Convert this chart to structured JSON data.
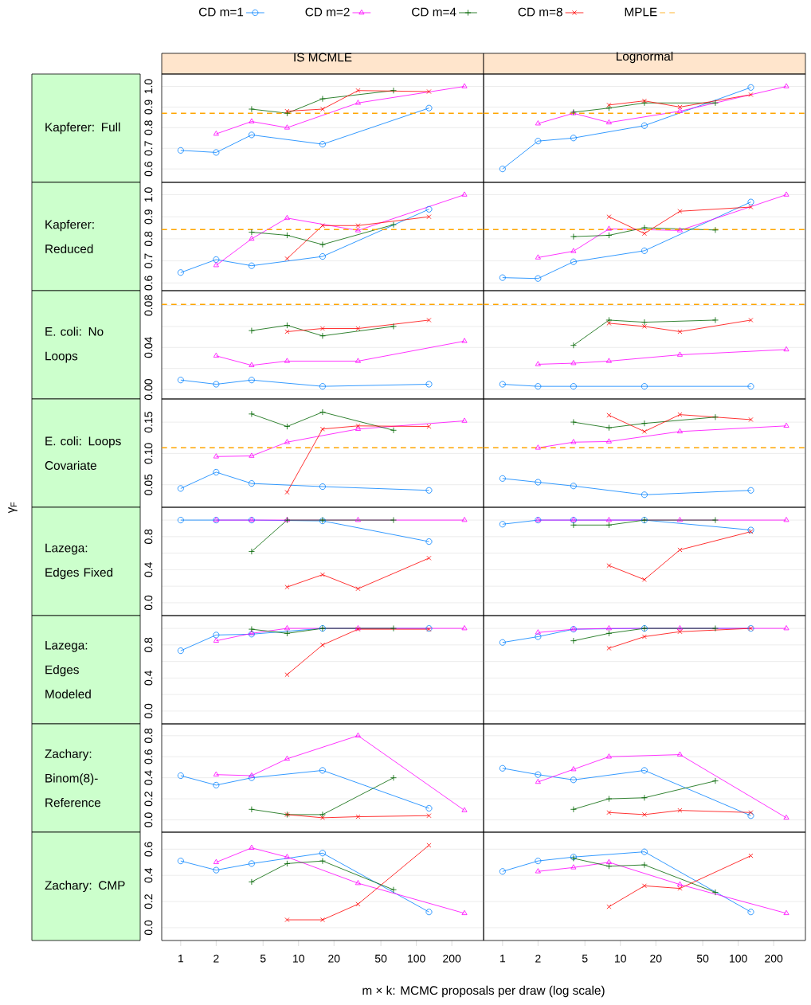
{
  "chart_data": [
    {
      "type": "line",
      "title": "IS MCMLE",
      "ylabel": "Kapferer: Full",
      "legend": "top",
      "log": "x",
      "grid": "y",
      "tick_labels": "y",
      "xlim": [
        0.69,
        372
      ],
      "xticks": [
        1,
        2,
        5,
        10,
        20,
        50,
        100,
        200
      ],
      "ylim": [
        0.535,
        1.06
      ],
      "yticks": [
        {
          "value": 0.6,
          "label": "0.6"
        },
        {
          "value": 0.7,
          "label": "0.7"
        },
        {
          "value": 0.8,
          "label": "0.8"
        },
        {
          "value": 0.9,
          "label": "0.9"
        },
        {
          "value": 1.0,
          "label": "1.0"
        }
      ],
      "series": [
        {
          "name": "CD m=1",
          "color": "#0080ff",
          "marker": "circle",
          "x": [
            1,
            2,
            4,
            16,
            128
          ],
          "values": [
            0.69,
            0.68,
            0.765,
            0.72,
            0.895
          ]
        },
        {
          "name": "CD m=2",
          "color": "#ff00ff",
          "marker": "triangle",
          "x": [
            2,
            4,
            8,
            32,
            256
          ],
          "values": [
            0.77,
            0.83,
            0.8,
            0.92,
            1.0
          ]
        },
        {
          "name": "CD m=4",
          "color": "#006400",
          "marker": "plus",
          "x": [
            4,
            8,
            16,
            64
          ],
          "values": [
            0.89,
            0.87,
            0.94,
            0.98
          ]
        },
        {
          "name": "CD m=8",
          "color": "#ff0000",
          "marker": "cross",
          "x": [
            8,
            16,
            32,
            128
          ],
          "values": [
            0.88,
            0.89,
            0.98,
            0.975
          ]
        }
      ],
      "ref_lines": [
        {
          "axis": "y",
          "value": 0.87,
          "label": "MPLE",
          "color": "#ffa500",
          "line_style": "dashed"
        }
      ]
    },
    {
      "type": "line",
      "title": "Lognormal",
      "log": "x",
      "grid": "y",
      "tick_labels": false,
      "xlim": [
        0.69,
        372
      ],
      "xticks": [
        1,
        2,
        5,
        10,
        20,
        50,
        100,
        200
      ],
      "ylim": [
        0.535,
        1.06
      ],
      "yticks": [
        {
          "value": 0.6,
          "label": null
        },
        {
          "value": 0.7,
          "label": null
        },
        {
          "value": 0.8,
          "label": null
        },
        {
          "value": 0.9,
          "label": null
        },
        {
          "value": 1.0,
          "label": null
        }
      ],
      "series": [
        {
          "color": "#0080ff",
          "marker": "circle",
          "x": [
            1,
            2,
            4,
            16,
            128
          ],
          "values": [
            0.6,
            0.735,
            0.75,
            0.81,
            0.995
          ]
        },
        {
          "color": "#ff00ff",
          "marker": "triangle",
          "x": [
            2,
            4,
            8,
            32,
            256
          ],
          "values": [
            0.82,
            0.87,
            0.825,
            0.88,
            1.0
          ]
        },
        {
          "color": "#006400",
          "marker": "plus",
          "x": [
            4,
            8,
            16,
            64
          ],
          "values": [
            0.875,
            0.895,
            0.92,
            0.92
          ]
        },
        {
          "color": "#ff0000",
          "marker": "cross",
          "x": [
            8,
            16,
            32,
            128
          ],
          "values": [
            0.91,
            0.93,
            0.9,
            0.96
          ]
        }
      ],
      "ref_lines": [
        {
          "axis": "y",
          "value": 0.87,
          "color": "#ffa500",
          "line_style": "dashed"
        }
      ]
    },
    {
      "type": "line",
      "ylabel": "Kapferer: Reduced",
      "log": "x",
      "grid": "y",
      "tick_labels": "y",
      "xlim": [
        0.69,
        372
      ],
      "xticks": [
        1,
        2,
        5,
        10,
        20,
        50,
        100,
        200
      ],
      "ylim": [
        0.565,
        1.056
      ],
      "yticks": [
        {
          "value": 0.6,
          "label": "0.6"
        },
        {
          "value": 0.7,
          "label": "0.7"
        },
        {
          "value": 0.8,
          "label": "0.8"
        },
        {
          "value": 0.9,
          "label": "0.9"
        },
        {
          "value": 1.0,
          "label": "1.0"
        }
      ],
      "series": [
        {
          "color": "#0080ff",
          "marker": "circle",
          "x": [
            1,
            2,
            4,
            16,
            128
          ],
          "values": [
            0.647,
            0.706,
            0.678,
            0.72,
            0.934
          ]
        },
        {
          "color": "#ff00ff",
          "marker": "triangle",
          "x": [
            2,
            4,
            8,
            32,
            256
          ],
          "values": [
            0.68,
            0.8,
            0.894,
            0.838,
            1.0
          ]
        },
        {
          "color": "#006400",
          "marker": "plus",
          "x": [
            4,
            8,
            16,
            64
          ],
          "values": [
            0.83,
            0.816,
            0.774,
            0.864
          ]
        },
        {
          "color": "#ff0000",
          "marker": "cross",
          "x": [
            8,
            16,
            32,
            128
          ],
          "values": [
            0.71,
            0.86,
            0.86,
            0.9
          ]
        }
      ],
      "ref_lines": [
        {
          "axis": "y",
          "value": 0.842,
          "color": "#ffa500",
          "line_style": "dashed"
        }
      ]
    },
    {
      "type": "line",
      "log": "x",
      "grid": "y",
      "tick_labels": false,
      "xlim": [
        0.69,
        372
      ],
      "xticks": [
        1,
        2,
        5,
        10,
        20,
        50,
        100,
        200
      ],
      "ylim": [
        0.565,
        1.056
      ],
      "yticks": [
        {
          "value": 0.6,
          "label": null
        },
        {
          "value": 0.7,
          "label": null
        },
        {
          "value": 0.8,
          "label": null
        },
        {
          "value": 0.9,
          "label": null
        },
        {
          "value": 1.0,
          "label": null
        }
      ],
      "series": [
        {
          "color": "#0080ff",
          "marker": "circle",
          "x": [
            1,
            2,
            4,
            16,
            128
          ],
          "values": [
            0.624,
            0.62,
            0.696,
            0.746,
            0.967
          ]
        },
        {
          "color": "#ff00ff",
          "marker": "triangle",
          "x": [
            2,
            4,
            8,
            32,
            256
          ],
          "values": [
            0.715,
            0.744,
            0.845,
            0.838,
            1.0
          ]
        },
        {
          "color": "#006400",
          "marker": "plus",
          "x": [
            4,
            8,
            16,
            64
          ],
          "values": [
            0.81,
            0.816,
            0.85,
            0.84
          ]
        },
        {
          "color": "#ff0000",
          "marker": "cross",
          "x": [
            8,
            16,
            32,
            128
          ],
          "values": [
            0.9,
            0.824,
            0.925,
            0.944
          ]
        }
      ],
      "ref_lines": [
        {
          "axis": "y",
          "value": 0.842,
          "color": "#ffa500",
          "line_style": "dashed"
        }
      ]
    },
    {
      "type": "line",
      "ylabel": "E. coli: No Loops",
      "log": "x",
      "grid": "y",
      "tick_labels": "y",
      "xlim": [
        0.69,
        372
      ],
      "xticks": [
        1,
        2,
        5,
        10,
        20,
        50,
        100,
        200
      ],
      "ylim": [
        -0.009,
        0.094
      ],
      "yticks": [
        {
          "value": 0.0,
          "label": "0.00"
        },
        {
          "value": 0.02,
          "label": null
        },
        {
          "value": 0.04,
          "label": "0.04"
        },
        {
          "value": 0.06,
          "label": null
        },
        {
          "value": 0.08,
          "label": "0.08"
        }
      ],
      "series": [
        {
          "color": "#0080ff",
          "marker": "circle",
          "x": [
            1,
            2,
            4,
            16,
            128
          ],
          "values": [
            0.009,
            0.005,
            0.009,
            0.003,
            0.005
          ]
        },
        {
          "color": "#ff00ff",
          "marker": "triangle",
          "x": [
            2,
            4,
            8,
            32,
            256
          ],
          "values": [
            0.032,
            0.023,
            0.027,
            0.027,
            0.046
          ]
        },
        {
          "color": "#006400",
          "marker": "plus",
          "x": [
            4,
            8,
            16,
            64
          ],
          "values": [
            0.056,
            0.061,
            0.051,
            0.06
          ]
        },
        {
          "color": "#ff0000",
          "marker": "cross",
          "x": [
            8,
            16,
            32,
            128
          ],
          "values": [
            0.055,
            0.058,
            0.058,
            0.066
          ]
        }
      ],
      "ref_lines": [
        {
          "axis": "y",
          "value": 0.081,
          "color": "#ffa500",
          "line_style": "dashed"
        }
      ]
    },
    {
      "type": "line",
      "log": "x",
      "grid": "y",
      "tick_labels": false,
      "xlim": [
        0.69,
        372
      ],
      "xticks": [
        1,
        2,
        5,
        10,
        20,
        50,
        100,
        200
      ],
      "ylim": [
        -0.009,
        0.094
      ],
      "yticks": [
        {
          "value": 0.0,
          "label": null
        },
        {
          "value": 0.02,
          "label": null
        },
        {
          "value": 0.04,
          "label": null
        },
        {
          "value": 0.06,
          "label": null
        },
        {
          "value": 0.08,
          "label": null
        }
      ],
      "series": [
        {
          "color": "#0080ff",
          "marker": "circle",
          "x": [
            1,
            2,
            4,
            16,
            128
          ],
          "values": [
            0.005,
            0.003,
            0.003,
            0.003,
            0.003
          ]
        },
        {
          "color": "#ff00ff",
          "marker": "triangle",
          "x": [
            2,
            4,
            8,
            32,
            256
          ],
          "values": [
            0.024,
            0.025,
            0.027,
            0.033,
            0.038
          ]
        },
        {
          "color": "#006400",
          "marker": "plus",
          "x": [
            4,
            8,
            16,
            64
          ],
          "values": [
            0.042,
            0.066,
            0.064,
            0.066
          ]
        },
        {
          "color": "#ff0000",
          "marker": "cross",
          "x": [
            8,
            16,
            32,
            128
          ],
          "values": [
            0.063,
            0.06,
            0.055,
            0.066
          ]
        }
      ],
      "ref_lines": [
        {
          "axis": "y",
          "value": 0.081,
          "color": "#ffa500",
          "line_style": "dashed"
        }
      ]
    },
    {
      "type": "line",
      "ylabel": "E. coli: Loops Covariate",
      "annotations": [
        "γ$_{F}$"
      ],
      "log": "x",
      "grid": "y",
      "tick_labels": "y",
      "xlim": [
        0.69,
        372
      ],
      "xticks": [
        1,
        2,
        5,
        10,
        20,
        50,
        100,
        200
      ],
      "ylim": [
        0.014,
        0.187
      ],
      "yticks": [
        {
          "value": 0.05,
          "label": "0.05"
        },
        {
          "value": 0.1,
          "label": "0.10"
        },
        {
          "value": 0.15,
          "label": "0.15"
        }
      ],
      "series": [
        {
          "color": "#0080ff",
          "marker": "circle",
          "x": [
            1,
            2,
            4,
            16,
            128
          ],
          "values": [
            0.044,
            0.07,
            0.052,
            0.047,
            0.041
          ]
        },
        {
          "color": "#ff00ff",
          "marker": "triangle",
          "x": [
            2,
            4,
            8,
            32,
            256
          ],
          "values": [
            0.095,
            0.096,
            0.118,
            0.139,
            0.152
          ]
        },
        {
          "color": "#006400",
          "marker": "plus",
          "x": [
            4,
            8,
            16,
            64
          ],
          "values": [
            0.163,
            0.143,
            0.166,
            0.137
          ]
        },
        {
          "color": "#ff0000",
          "marker": "cross",
          "x": [
            8,
            16,
            32,
            128
          ],
          "values": [
            0.038,
            0.139,
            0.144,
            0.143
          ]
        }
      ],
      "ref_lines": [
        {
          "axis": "y",
          "value": 0.109,
          "color": "#ffa500",
          "line_style": "dashed"
        }
      ]
    },
    {
      "type": "line",
      "log": "x",
      "grid": "y",
      "tick_labels": false,
      "xlim": [
        0.69,
        372
      ],
      "xticks": [
        1,
        2,
        5,
        10,
        20,
        50,
        100,
        200
      ],
      "ylim": [
        0.014,
        0.187
      ],
      "yticks": [
        {
          "value": 0.05,
          "label": null
        },
        {
          "value": 0.1,
          "label": null
        },
        {
          "value": 0.15,
          "label": null
        }
      ],
      "series": [
        {
          "color": "#0080ff",
          "marker": "circle",
          "x": [
            1,
            2,
            4,
            16,
            128
          ],
          "values": [
            0.06,
            0.054,
            0.048,
            0.034,
            0.041
          ]
        },
        {
          "color": "#ff00ff",
          "marker": "triangle",
          "x": [
            2,
            4,
            8,
            32,
            256
          ],
          "values": [
            0.109,
            0.118,
            0.119,
            0.135,
            0.144
          ]
        },
        {
          "color": "#006400",
          "marker": "plus",
          "x": [
            4,
            8,
            16,
            64
          ],
          "values": [
            0.15,
            0.141,
            0.148,
            0.158
          ]
        },
        {
          "color": "#ff0000",
          "marker": "cross",
          "x": [
            8,
            16,
            32,
            128
          ],
          "values": [
            0.161,
            0.135,
            0.162,
            0.154
          ]
        }
      ],
      "ref_lines": [
        {
          "axis": "y",
          "value": 0.109,
          "color": "#ffa500",
          "line_style": "dashed"
        }
      ]
    },
    {
      "type": "line",
      "ylabel": "Lazega: Edges Fixed",
      "log": "x",
      "grid": "y",
      "tick_labels": "y",
      "xlim": [
        0.69,
        372
      ],
      "xticks": [
        1,
        2,
        5,
        10,
        20,
        50,
        100,
        200
      ],
      "ylim": [
        -0.155,
        1.155
      ],
      "yticks": [
        {
          "value": 0.0,
          "label": "0.0"
        },
        {
          "value": 0.2,
          "label": null
        },
        {
          "value": 0.4,
          "label": "0.4"
        },
        {
          "value": 0.6,
          "label": null
        },
        {
          "value": 0.8,
          "label": "0.8"
        },
        {
          "value": 1.0,
          "label": null
        }
      ],
      "series": [
        {
          "color": "#0080ff",
          "marker": "circle",
          "x": [
            1,
            2,
            4,
            16,
            128
          ],
          "values": [
            1.0,
            1.0,
            1.0,
            0.99,
            0.74
          ]
        },
        {
          "color": "#ff00ff",
          "marker": "triangle",
          "x": [
            2,
            4,
            8,
            32,
            256
          ],
          "values": [
            1.0,
            1.0,
            1.0,
            1.0,
            1.0
          ]
        },
        {
          "color": "#006400",
          "marker": "plus",
          "x": [
            4,
            8,
            16,
            64
          ],
          "values": [
            0.62,
            1.0,
            1.0,
            1.0
          ]
        },
        {
          "color": "#ff0000",
          "marker": "cross",
          "x": [
            8,
            16,
            32,
            128
          ],
          "values": [
            0.19,
            0.34,
            0.17,
            0.54
          ]
        }
      ]
    },
    {
      "type": "line",
      "log": "x",
      "grid": "y",
      "tick_labels": false,
      "xlim": [
        0.69,
        372
      ],
      "xticks": [
        1,
        2,
        5,
        10,
        20,
        50,
        100,
        200
      ],
      "ylim": [
        -0.155,
        1.155
      ],
      "yticks": [
        {
          "value": 0.0,
          "label": null
        },
        {
          "value": 0.2,
          "label": null
        },
        {
          "value": 0.4,
          "label": null
        },
        {
          "value": 0.6,
          "label": null
        },
        {
          "value": 0.8,
          "label": null
        },
        {
          "value": 1.0,
          "label": null
        }
      ],
      "series": [
        {
          "color": "#0080ff",
          "marker": "circle",
          "x": [
            1,
            2,
            4,
            16,
            128
          ],
          "values": [
            0.95,
            1.0,
            1.0,
            1.0,
            0.88
          ]
        },
        {
          "color": "#ff00ff",
          "marker": "triangle",
          "x": [
            2,
            4,
            8,
            32,
            256
          ],
          "values": [
            1.0,
            1.0,
            1.0,
            1.0,
            1.0
          ]
        },
        {
          "color": "#006400",
          "marker": "plus",
          "x": [
            4,
            8,
            16,
            64
          ],
          "values": [
            0.94,
            0.94,
            1.0,
            1.0
          ]
        },
        {
          "color": "#ff0000",
          "marker": "cross",
          "x": [
            8,
            16,
            32,
            128
          ],
          "values": [
            0.45,
            0.28,
            0.64,
            0.86
          ]
        }
      ]
    },
    {
      "type": "line",
      "ylabel": "Lazega: Edges Modeled",
      "log": "x",
      "grid": "y",
      "tick_labels": "y",
      "xlim": [
        0.69,
        372
      ],
      "xticks": [
        1,
        2,
        5,
        10,
        20,
        50,
        100,
        200
      ],
      "ylim": [
        -0.155,
        1.155
      ],
      "yticks": [
        {
          "value": 0.0,
          "label": "0.0"
        },
        {
          "value": 0.2,
          "label": null
        },
        {
          "value": 0.4,
          "label": "0.4"
        },
        {
          "value": 0.6,
          "label": null
        },
        {
          "value": 0.8,
          "label": "0.8"
        },
        {
          "value": 1.0,
          "label": null
        }
      ],
      "series": [
        {
          "color": "#0080ff",
          "marker": "circle",
          "x": [
            1,
            2,
            4,
            16,
            128
          ],
          "values": [
            0.73,
            0.92,
            0.93,
            1.0,
            1.0
          ]
        },
        {
          "color": "#ff00ff",
          "marker": "triangle",
          "x": [
            2,
            4,
            8,
            32,
            256
          ],
          "values": [
            0.85,
            0.94,
            1.0,
            1.0,
            1.0
          ]
        },
        {
          "color": "#006400",
          "marker": "plus",
          "x": [
            4,
            8,
            16,
            64
          ],
          "values": [
            0.99,
            0.94,
            1.0,
            1.0
          ]
        },
        {
          "color": "#ff0000",
          "marker": "cross",
          "x": [
            8,
            16,
            32,
            128
          ],
          "values": [
            0.44,
            0.8,
            0.99,
            0.99
          ]
        }
      ]
    },
    {
      "type": "line",
      "log": "x",
      "grid": "y",
      "tick_labels": false,
      "xlim": [
        0.69,
        372
      ],
      "xticks": [
        1,
        2,
        5,
        10,
        20,
        50,
        100,
        200
      ],
      "ylim": [
        -0.155,
        1.155
      ],
      "yticks": [
        {
          "value": 0.0,
          "label": null
        },
        {
          "value": 0.2,
          "label": null
        },
        {
          "value": 0.4,
          "label": null
        },
        {
          "value": 0.6,
          "label": null
        },
        {
          "value": 0.8,
          "label": null
        },
        {
          "value": 1.0,
          "label": null
        }
      ],
      "series": [
        {
          "color": "#0080ff",
          "marker": "circle",
          "x": [
            1,
            2,
            4,
            16,
            128
          ],
          "values": [
            0.83,
            0.9,
            0.99,
            1.0,
            1.0
          ]
        },
        {
          "color": "#ff00ff",
          "marker": "triangle",
          "x": [
            2,
            4,
            8,
            32,
            256
          ],
          "values": [
            0.95,
            0.99,
            1.0,
            1.0,
            1.0
          ]
        },
        {
          "color": "#006400",
          "marker": "plus",
          "x": [
            4,
            8,
            16,
            64
          ],
          "values": [
            0.85,
            0.94,
            1.0,
            1.0
          ]
        },
        {
          "color": "#ff0000",
          "marker": "cross",
          "x": [
            8,
            16,
            32,
            128
          ],
          "values": [
            0.76,
            0.9,
            0.96,
            1.0
          ]
        }
      ]
    },
    {
      "type": "line",
      "ylabel": "Zachary: Binom(8)-Reference",
      "log": "x",
      "grid": "y",
      "tick_labels": "y",
      "xlim": [
        0.69,
        372
      ],
      "xticks": [
        1,
        2,
        5,
        10,
        20,
        50,
        100,
        200
      ],
      "ylim": [
        -0.117,
        0.912
      ],
      "yticks": [
        {
          "value": 0.0,
          "label": "0.0"
        },
        {
          "value": 0.2,
          "label": "0.2"
        },
        {
          "value": 0.4,
          "label": "0.4"
        },
        {
          "value": 0.6,
          "label": "0.6"
        },
        {
          "value": 0.8,
          "label": "0.8"
        }
      ],
      "series": [
        {
          "color": "#0080ff",
          "marker": "circle",
          "x": [
            1,
            2,
            4,
            16,
            128
          ],
          "values": [
            0.42,
            0.33,
            0.4,
            0.47,
            0.11
          ]
        },
        {
          "color": "#ff00ff",
          "marker": "triangle",
          "x": [
            2,
            4,
            8,
            32,
            256
          ],
          "values": [
            0.43,
            0.42,
            0.58,
            0.8,
            0.09
          ]
        },
        {
          "color": "#006400",
          "marker": "plus",
          "x": [
            4,
            8,
            16,
            64
          ],
          "values": [
            0.1,
            0.05,
            0.05,
            0.4
          ]
        },
        {
          "color": "#ff0000",
          "marker": "cross",
          "x": [
            8,
            16,
            32,
            128
          ],
          "values": [
            0.05,
            0.02,
            0.03,
            0.04
          ]
        }
      ]
    },
    {
      "type": "line",
      "log": "x",
      "grid": "y",
      "tick_labels": false,
      "xlim": [
        0.69,
        372
      ],
      "xticks": [
        1,
        2,
        5,
        10,
        20,
        50,
        100,
        200
      ],
      "ylim": [
        -0.117,
        0.912
      ],
      "yticks": [
        {
          "value": 0.0,
          "label": null
        },
        {
          "value": 0.2,
          "label": null
        },
        {
          "value": 0.4,
          "label": null
        },
        {
          "value": 0.6,
          "label": null
        },
        {
          "value": 0.8,
          "label": null
        }
      ],
      "series": [
        {
          "color": "#0080ff",
          "marker": "circle",
          "x": [
            1,
            2,
            4,
            16,
            128
          ],
          "values": [
            0.49,
            0.43,
            0.38,
            0.47,
            0.04
          ]
        },
        {
          "color": "#ff00ff",
          "marker": "triangle",
          "x": [
            2,
            4,
            8,
            32,
            256
          ],
          "values": [
            0.36,
            0.48,
            0.6,
            0.62,
            0.02
          ]
        },
        {
          "color": "#006400",
          "marker": "plus",
          "x": [
            4,
            8,
            16,
            64
          ],
          "values": [
            0.1,
            0.2,
            0.21,
            0.37
          ]
        },
        {
          "color": "#ff0000",
          "marker": "cross",
          "x": [
            8,
            16,
            32,
            128
          ],
          "values": [
            0.07,
            0.05,
            0.09,
            0.07
          ]
        }
      ]
    },
    {
      "type": "line",
      "ylabel": "Zachary: CMP",
      "xlabel": "m × k: MCMC proposals per draw (log scale)",
      "log": "x",
      "grid": "y",
      "xlim": [
        0.69,
        372
      ],
      "xticks": [
        1,
        2,
        5,
        10,
        20,
        50,
        100,
        200
      ],
      "ylim": [
        -0.098,
        0.73
      ],
      "yticks": [
        {
          "value": 0.0,
          "label": "0.0"
        },
        {
          "value": 0.2,
          "label": "0.2"
        },
        {
          "value": 0.4,
          "label": "0.4"
        },
        {
          "value": 0.6,
          "label": "0.6"
        }
      ],
      "series": [
        {
          "color": "#0080ff",
          "marker": "circle",
          "x": [
            1,
            2,
            4,
            16,
            128
          ],
          "values": [
            0.51,
            0.44,
            0.49,
            0.57,
            0.12
          ]
        },
        {
          "color": "#ff00ff",
          "marker": "triangle",
          "x": [
            2,
            4,
            8,
            32,
            256
          ],
          "values": [
            0.5,
            0.61,
            0.54,
            0.34,
            0.11
          ]
        },
        {
          "color": "#006400",
          "marker": "plus",
          "x": [
            4,
            8,
            16,
            64
          ],
          "values": [
            0.35,
            0.49,
            0.51,
            0.29
          ]
        },
        {
          "color": "#ff0000",
          "marker": "cross",
          "x": [
            8,
            16,
            32,
            128
          ],
          "values": [
            0.06,
            0.06,
            0.18,
            0.63
          ]
        }
      ]
    },
    {
      "type": "line",
      "log": "x",
      "grid": "y",
      "tick_labels": "x",
      "xlim": [
        0.69,
        372
      ],
      "xticks": [
        1,
        2,
        5,
        10,
        20,
        50,
        100,
        200
      ],
      "ylim": [
        -0.098,
        0.73
      ],
      "yticks": [
        {
          "value": 0.0,
          "label": null
        },
        {
          "value": 0.2,
          "label": null
        },
        {
          "value": 0.4,
          "label": null
        },
        {
          "value": 0.6,
          "label": null
        }
      ],
      "series": [
        {
          "color": "#0080ff",
          "marker": "circle",
          "x": [
            1,
            2,
            4,
            16,
            128
          ],
          "values": [
            0.43,
            0.51,
            0.54,
            0.58,
            0.12
          ]
        },
        {
          "color": "#ff00ff",
          "marker": "triangle",
          "x": [
            2,
            4,
            8,
            32,
            256
          ],
          "values": [
            0.43,
            0.46,
            0.5,
            0.33,
            0.11
          ]
        },
        {
          "color": "#006400",
          "marker": "plus",
          "x": [
            4,
            8,
            16,
            64
          ],
          "values": [
            0.53,
            0.47,
            0.48,
            0.27
          ]
        },
        {
          "color": "#ff0000",
          "marker": "cross",
          "x": [
            8,
            16,
            32,
            128
          ],
          "values": [
            0.16,
            0.32,
            0.3,
            0.55
          ]
        }
      ]
    }
  ]
}
